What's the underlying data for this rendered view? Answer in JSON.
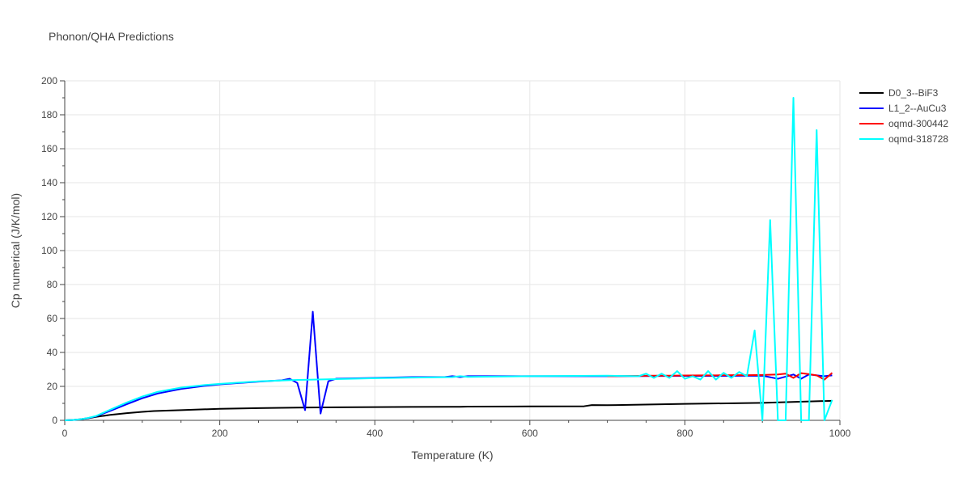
{
  "chart_data": {
    "type": "line",
    "title": "Phonon/QHA Predictions",
    "xlabel": "Temperature (K)",
    "ylabel": "Cp numerical (J/K/mol)",
    "xlim": [
      0,
      1000
    ],
    "ylim": [
      0,
      200
    ],
    "xticks": [
      0,
      200,
      400,
      600,
      800,
      1000
    ],
    "yticks": [
      0,
      20,
      40,
      60,
      80,
      100,
      120,
      140,
      160,
      180,
      200
    ],
    "grid": true,
    "legend_position": "top-right",
    "series": [
      {
        "name": "D0_3--BiF3",
        "color": "#000000",
        "x": [
          0,
          10,
          20,
          30,
          40,
          60,
          80,
          100,
          115,
          150,
          200,
          250,
          300,
          350,
          400,
          450,
          500,
          510,
          520,
          600,
          670,
          680,
          700,
          800,
          900,
          990
        ],
        "y": [
          0,
          0.2,
          0.6,
          1.2,
          2.0,
          3.3,
          4.2,
          5.0,
          5.5,
          6.0,
          6.8,
          7.2,
          7.5,
          7.7,
          7.8,
          7.9,
          8.0,
          8.0,
          8.1,
          8.2,
          8.3,
          9.0,
          8.9,
          9.7,
          10.3,
          11.5
        ]
      },
      {
        "name": "L1_2--AuCu3",
        "color": "#0000ff",
        "x": [
          0,
          10,
          20,
          30,
          40,
          60,
          80,
          100,
          120,
          150,
          180,
          200,
          250,
          280,
          290,
          300,
          310,
          320,
          330,
          340,
          350,
          400,
          450,
          490,
          500,
          510,
          520,
          600,
          700,
          800,
          850,
          900,
          920,
          940,
          950,
          960,
          980,
          990
        ],
        "y": [
          0,
          0.2,
          0.6,
          1.3,
          2.3,
          5.8,
          9.5,
          13.0,
          15.8,
          18.5,
          20.3,
          21.2,
          22.8,
          23.6,
          24.5,
          22.0,
          6.0,
          64.0,
          4.0,
          23.0,
          24.5,
          25.0,
          25.5,
          25.5,
          26.0,
          25.5,
          26.0,
          26.0,
          26.0,
          26.2,
          26.2,
          26.3,
          24.5,
          27.0,
          24.5,
          27.0,
          26.0,
          26.5
        ]
      },
      {
        "name": "oqmd-300442",
        "color": "#ff0000",
        "x": [
          700,
          720,
          740,
          760,
          780,
          800,
          820,
          840,
          860,
          880,
          900,
          920,
          930,
          940,
          950,
          960,
          970,
          980,
          990
        ],
        "y": [
          26.0,
          26.1,
          26.2,
          26.3,
          26.3,
          26.4,
          26.5,
          26.5,
          26.6,
          26.6,
          26.7,
          27.0,
          27.5,
          25.0,
          27.8,
          27.2,
          26.5,
          24.0,
          28.0
        ]
      },
      {
        "name": "oqmd-318728",
        "color": "#00ffff",
        "x": [
          0,
          10,
          20,
          30,
          40,
          60,
          80,
          100,
          120,
          150,
          180,
          200,
          250,
          300,
          350,
          400,
          450,
          500,
          510,
          520,
          600,
          700,
          740,
          750,
          760,
          770,
          780,
          790,
          800,
          810,
          820,
          830,
          840,
          850,
          860,
          870,
          880,
          890,
          900,
          910,
          920,
          930,
          940,
          950,
          960,
          970,
          980,
          990
        ],
        "y": [
          0,
          0.2,
          0.6,
          1.4,
          2.5,
          6.5,
          10.5,
          14.0,
          16.8,
          19.3,
          20.8,
          21.5,
          23.0,
          23.8,
          24.3,
          24.8,
          25.2,
          25.5,
          26.0,
          25.6,
          26.0,
          26.3,
          26.0,
          27.5,
          25.0,
          27.5,
          25.0,
          29.0,
          24.5,
          26.0,
          24.0,
          29.0,
          24.0,
          28.0,
          25.0,
          28.5,
          26.0,
          53.0,
          0,
          118.0,
          0,
          0,
          190.0,
          0,
          0,
          171.0,
          0,
          12.0
        ]
      }
    ]
  }
}
